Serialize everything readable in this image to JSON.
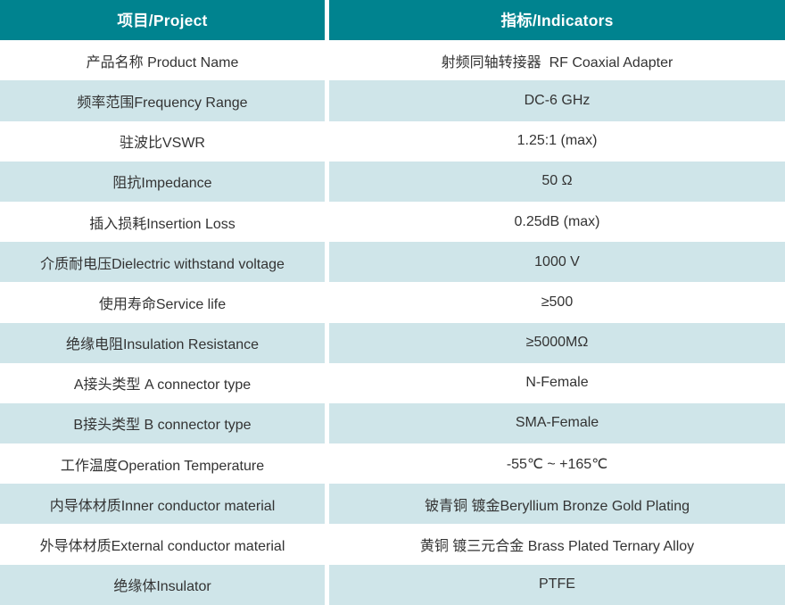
{
  "colors": {
    "header_bg": "#00838F",
    "alt_row_bg": "#CFE5E9",
    "row_bg": "#FFFFFF",
    "header_text": "#FFFFFF",
    "body_text": "#333333"
  },
  "table": {
    "columns": [
      {
        "label": "项目/Project"
      },
      {
        "label": "指标/Indicators"
      }
    ],
    "rows": [
      {
        "project": "产品名称 Product Name",
        "indicator": "射频同轴转接器  RF Coaxial Adapter"
      },
      {
        "project": "频率范围Frequency Range",
        "indicator": "DC-6 GHz"
      },
      {
        "project": "驻波比VSWR",
        "indicator": "1.25:1 (max)"
      },
      {
        "project": "阻抗Impedance",
        "indicator": "50 Ω"
      },
      {
        "project": "插入损耗Insertion Loss",
        "indicator": "0.25dB (max)"
      },
      {
        "project": "介质耐电压Dielectric withstand voltage",
        "indicator": "1000 V"
      },
      {
        "project": "使用寿命Service life",
        "indicator": "≥500"
      },
      {
        "project": "绝缘电阻Insulation Resistance",
        "indicator": "≥5000MΩ"
      },
      {
        "project": "A接头类型 A connector type",
        "indicator": "N-Female"
      },
      {
        "project": "B接头类型 B connector type",
        "indicator": "SMA-Female"
      },
      {
        "project": "工作温度Operation Temperature",
        "indicator": "-55℃ ~ +165℃"
      },
      {
        "project": "内导体材质Inner conductor material",
        "indicator": "铍青铜 镀金Beryllium Bronze Gold Plating"
      },
      {
        "project": "外导体材质External conductor material",
        "indicator": "黄铜 镀三元合金 Brass Plated Ternary Alloy"
      },
      {
        "project": "绝缘体Insulator",
        "indicator": "PTFE"
      }
    ]
  }
}
